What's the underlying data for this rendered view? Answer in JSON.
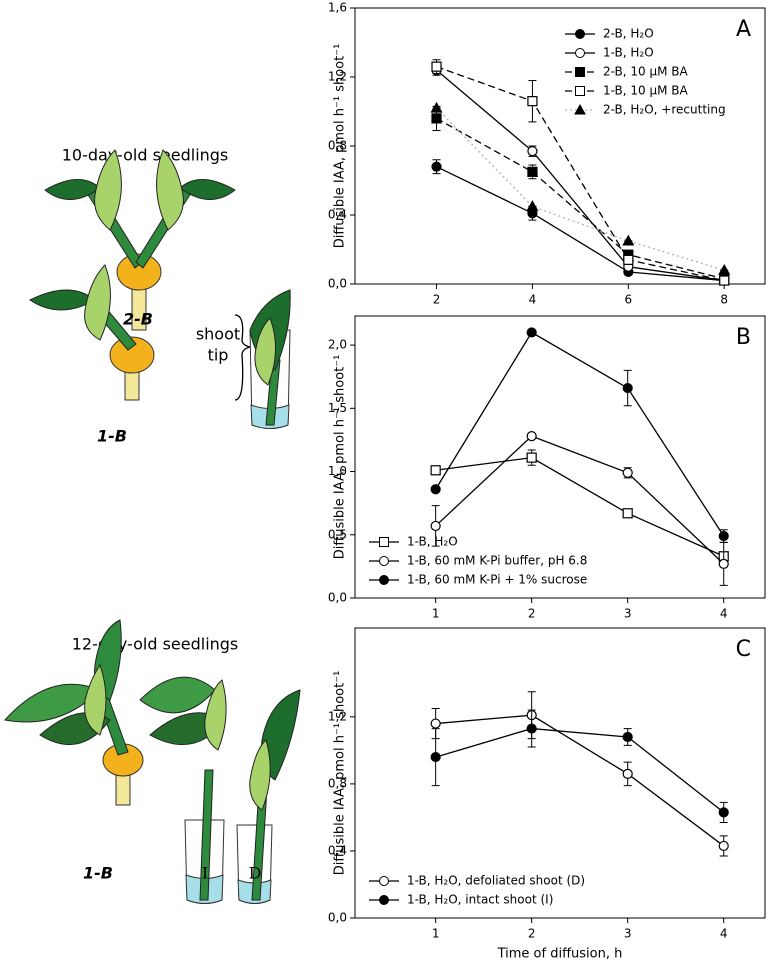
{
  "chart_data": [
    {
      "type": "line",
      "title": "A",
      "y_label": "Diffusible IAA, pmol h⁻¹ shoot⁻¹",
      "x": [
        2,
        4,
        6,
        8
      ],
      "xlim": [
        0.3,
        8.85
      ],
      "xticks": [
        2,
        4,
        6,
        8
      ],
      "ylim": [
        0,
        1.6
      ],
      "yticks": [
        {
          "value": 0,
          "label": "0,0"
        },
        {
          "value": 0.4,
          "label": "0,4"
        },
        {
          "value": 0.8,
          "label": "0,8"
        },
        {
          "value": 1.2,
          "label": "1,2"
        },
        {
          "value": 1.6,
          "label": "1,6"
        }
      ],
      "legend": "upper right",
      "series": [
        {
          "name": "2-B, H₂O",
          "color": "#000000",
          "line_color": "#000000",
          "marker": "circle",
          "fill": "filled",
          "dash": "solid",
          "values": [
            0.68,
            0.41,
            0.07,
            0.02
          ],
          "errors": [
            0.04,
            0.04,
            0.01,
            0
          ]
        },
        {
          "name": "1-B, H₂O",
          "color": "#000000",
          "line_color": "#000000",
          "marker": "circle",
          "fill": "open",
          "dash": "solid",
          "values": [
            1.24,
            0.77,
            0.1,
            0.02
          ],
          "errors": [
            0.03,
            0.03,
            0.01,
            0
          ]
        },
        {
          "name": "2-B, 10 µM BA",
          "color": "#000000",
          "line_color": "#000000",
          "marker": "square",
          "fill": "filled",
          "dash": "dashed",
          "values": [
            0.96,
            0.65,
            0.17,
            0.03
          ],
          "errors": [
            0.07,
            0.04,
            0.02,
            0
          ]
        },
        {
          "name": "1-B, 10 µM BA",
          "color": "#000000",
          "line_color": "#000000",
          "marker": "square",
          "fill": "open",
          "dash": "dashed",
          "values": [
            1.26,
            1.06,
            0.14,
            0.02
          ],
          "errors": [
            0.04,
            0.12,
            0.02,
            0
          ]
        },
        {
          "name": "2-B, H₂O, +recutting",
          "color": "#000000",
          "line_color": "#b0b0b0",
          "marker": "triangle",
          "fill": "filled",
          "dash": "dotted",
          "values": [
            1.02,
            0.45,
            0.25,
            0.08
          ],
          "errors": [
            0,
            0,
            0,
            0
          ]
        }
      ]
    },
    {
      "type": "line",
      "title": "B",
      "y_label": "Diffusible IAA, pmol h⁻¹ shoot⁻¹",
      "x": [
        1,
        2,
        3,
        4
      ],
      "xlim": [
        0.16,
        4.43
      ],
      "xticks": [
        1,
        2,
        3,
        4
      ],
      "ylim": [
        0,
        2.23
      ],
      "yticks": [
        {
          "value": 0,
          "label": "0,0"
        },
        {
          "value": 0.5,
          "label": "0,5"
        },
        {
          "value": 1,
          "label": "1,0"
        },
        {
          "value": 1.5,
          "label": "1,5"
        },
        {
          "value": 2,
          "label": "2,0"
        }
      ],
      "legend": "lower left",
      "series": [
        {
          "name": "1-B, H₂O",
          "color": "#000000",
          "line_color": "#000000",
          "marker": "square",
          "fill": "open",
          "dash": "solid",
          "values": [
            1.01,
            1.11,
            0.67,
            0.33
          ],
          "errors": [
            0.02,
            0.06,
            0.02,
            0
          ]
        },
        {
          "name": "1-B, 60 mM K-Pi buffer, pH 6.8",
          "color": "#000000",
          "line_color": "#000000",
          "marker": "circle",
          "fill": "open",
          "dash": "solid",
          "values": [
            0.57,
            1.28,
            0.99,
            0.27
          ],
          "errors": [
            0.16,
            0.02,
            0.04,
            0.17
          ]
        },
        {
          "name": "1-B, 60 mM K-Pi + 1% sucrose",
          "color": "#000000",
          "line_color": "#000000",
          "marker": "circle",
          "fill": "filled",
          "dash": "solid",
          "values": [
            0.86,
            2.1,
            1.66,
            0.49
          ],
          "errors": [
            0.02,
            0,
            0.14,
            0.05
          ]
        }
      ]
    },
    {
      "type": "line",
      "title": "C",
      "y_label": "Diffusible IAA, pmol h⁻¹ shoot⁻¹",
      "x_label": "Time of diffusion, h",
      "x": [
        1,
        2,
        3,
        4
      ],
      "xlim": [
        0.16,
        4.43
      ],
      "xticks": [
        1,
        2,
        3,
        4
      ],
      "ylim": [
        0,
        1.73
      ],
      "yticks": [
        {
          "value": 0,
          "label": "0,0"
        },
        {
          "value": 0.4,
          "label": "0,4"
        },
        {
          "value": 0.8,
          "label": "0,8"
        },
        {
          "value": 1.2,
          "label": "1,2"
        }
      ],
      "legend": "lower left",
      "series": [
        {
          "name": "1-B, H₂O, defoliated shoot (D)",
          "color": "#000000",
          "line_color": "#000000",
          "marker": "circle",
          "fill": "open",
          "dash": "solid",
          "values": [
            1.16,
            1.21,
            0.86,
            0.43
          ],
          "errors": [
            0.09,
            0.14,
            0.07,
            0.06
          ]
        },
        {
          "name": "1-B, H₂O, intact shoot (I)",
          "color": "#000000",
          "line_color": "#000000",
          "marker": "circle",
          "fill": "filled",
          "dash": "solid",
          "values": [
            0.96,
            1.13,
            1.08,
            0.63
          ],
          "errors": [
            0.17,
            0.11,
            0.05,
            0.06
          ]
        }
      ]
    }
  ],
  "illustration": {
    "top_title": "10-day-old seedlings",
    "label_2b": "2-B",
    "shoot": "shoot",
    "tip": "tip",
    "label_1b_top": "1-B",
    "bottom_title": "12-day-old seedlings",
    "label_1b_bottom": "1-B",
    "label_i": "I",
    "label_d": "D"
  }
}
